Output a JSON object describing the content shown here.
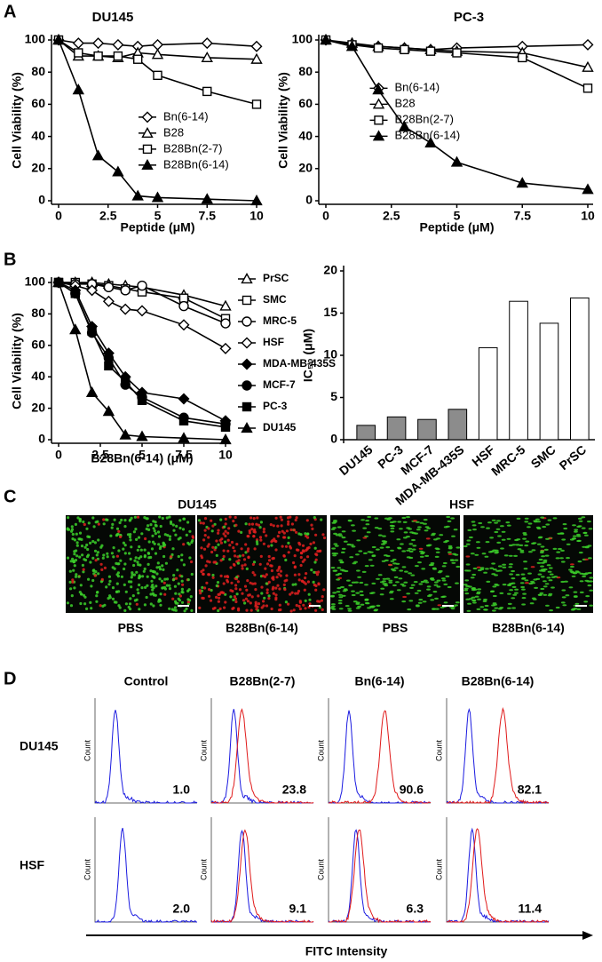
{
  "panel_labels": [
    "A",
    "B",
    "C",
    "D"
  ],
  "chart_data": [
    {
      "type": "line",
      "title": "DU145",
      "xlabel": "Peptide (μM)",
      "ylabel": "Cell Viability (%)",
      "x": [
        0,
        1,
        2,
        3,
        4,
        5,
        7.5,
        10
      ],
      "xlim": [
        0,
        10
      ],
      "xticks": [
        0,
        2.5,
        5,
        7.5,
        10
      ],
      "ylim": [
        0,
        100
      ],
      "yticks": [
        0,
        20,
        40,
        60,
        80,
        100
      ],
      "grid": false,
      "legend": "center right",
      "series": [
        {
          "name": "Bn(6-14)",
          "marker": "diamond-open",
          "color": "#000000",
          "values": [
            100,
            98,
            98,
            97,
            96,
            97,
            98,
            96
          ]
        },
        {
          "name": "B28",
          "marker": "triangle-open",
          "color": "#000000",
          "values": [
            100,
            90,
            90,
            89,
            92,
            91,
            89,
            88
          ]
        },
        {
          "name": "B28Bn(2-7)",
          "marker": "square-open",
          "color": "#000000",
          "values": [
            100,
            92,
            90,
            90,
            88,
            78,
            68,
            60
          ]
        },
        {
          "name": "B28Bn(6-14)",
          "marker": "triangle-filled",
          "color": "#000000",
          "values": [
            100,
            69,
            28,
            18,
            3,
            2,
            1,
            0
          ]
        }
      ]
    },
    {
      "type": "line",
      "title": "PC-3",
      "xlabel": "Peptide (μM)",
      "ylabel": "Cell Viability (%)",
      "x": [
        0,
        1,
        2,
        3,
        4,
        5,
        7.5,
        10
      ],
      "xlim": [
        0,
        10
      ],
      "xticks": [
        0,
        2.5,
        5,
        7.5,
        10
      ],
      "ylim": [
        0,
        100
      ],
      "yticks": [
        0,
        20,
        40,
        60,
        80,
        100
      ],
      "grid": false,
      "legend": "upper center",
      "series": [
        {
          "name": "Bn(6-14)",
          "marker": "diamond-open",
          "color": "#000000",
          "values": [
            100,
            97,
            96,
            95,
            94,
            95,
            96,
            97
          ]
        },
        {
          "name": "B28",
          "marker": "triangle-open",
          "color": "#000000",
          "values": [
            100,
            98,
            96,
            95,
            94,
            93,
            92,
            83
          ]
        },
        {
          "name": "B28Bn(2-7)",
          "marker": "square-open",
          "color": "#000000",
          "values": [
            100,
            97,
            95,
            94,
            93,
            92,
            89,
            70
          ]
        },
        {
          "name": "B28Bn(6-14)",
          "marker": "triangle-filled",
          "color": "#000000",
          "values": [
            100,
            96,
            69,
            46,
            36,
            24,
            11,
            7
          ]
        }
      ]
    },
    {
      "type": "line",
      "xlabel": "B28Bn(6-14) (μM)",
      "ylabel": "Cell Viability (%)",
      "x": [
        0,
        1,
        2,
        3,
        4,
        5,
        7.5,
        10
      ],
      "xlim": [
        0,
        10
      ],
      "xticks": [
        0,
        2.5,
        5,
        7.5,
        10
      ],
      "ylim": [
        0,
        100
      ],
      "yticks": [
        0,
        20,
        40,
        60,
        80,
        100
      ],
      "grid": false,
      "legend": "outside right",
      "series": [
        {
          "name": "PrSC",
          "marker": "triangle-open",
          "color": "#000000",
          "values": [
            100,
            100,
            100,
            99,
            98,
            97,
            92,
            85
          ]
        },
        {
          "name": "SMC",
          "marker": "square-open",
          "color": "#000000",
          "values": [
            100,
            100,
            99,
            98,
            96,
            94,
            90,
            77
          ]
        },
        {
          "name": "MRC-5",
          "marker": "circle-open",
          "color": "#000000",
          "values": [
            100,
            99,
            99,
            97,
            95,
            98,
            85,
            74
          ]
        },
        {
          "name": "HSF",
          "marker": "diamond-open",
          "color": "#000000",
          "values": [
            100,
            98,
            95,
            88,
            83,
            82,
            73,
            58
          ]
        },
        {
          "name": "MDA-MB-435S",
          "marker": "diamond-filled",
          "color": "#000000",
          "values": [
            100,
            95,
            72,
            55,
            40,
            30,
            26,
            12
          ]
        },
        {
          "name": "MCF-7",
          "marker": "circle-filled",
          "color": "#000000",
          "values": [
            100,
            93,
            68,
            52,
            35,
            27,
            14,
            10
          ]
        },
        {
          "name": "PC-3",
          "marker": "square-filled",
          "color": "#000000",
          "values": [
            100,
            93,
            69,
            47,
            37,
            25,
            12,
            8
          ]
        },
        {
          "name": "DU145",
          "marker": "triangle-filled",
          "color": "#000000",
          "values": [
            100,
            70,
            30,
            18,
            3,
            2,
            1,
            0
          ]
        }
      ]
    },
    {
      "type": "bar",
      "ylabel": "IC₅₀ (μM)",
      "categories": [
        "DU145",
        "PC-3",
        "MCF-7",
        "MDA-MB-435S",
        "HSF",
        "MRC-5",
        "SMC",
        "PrSC"
      ],
      "values": [
        1.7,
        2.7,
        2.4,
        3.6,
        10.9,
        16.4,
        13.8,
        16.8
      ],
      "colors": [
        "#8c8c8c",
        "#8c8c8c",
        "#8c8c8c",
        "#8c8c8c",
        "#ffffff",
        "#ffffff",
        "#ffffff",
        "#ffffff"
      ],
      "ylim": [
        0,
        20
      ],
      "yticks": [
        0,
        5,
        10,
        15,
        20
      ],
      "grid": false
    }
  ],
  "imaging_panel": {
    "groups": [
      "DU145",
      "HSF"
    ],
    "images": [
      "PBS",
      "B28Bn(6-14)",
      "PBS",
      "B28Bn(6-14)"
    ]
  },
  "flow_panel": {
    "columns": [
      "Control",
      "B28Bn(2-7)",
      "Bn(6-14)",
      "B28Bn(6-14)"
    ],
    "rows": [
      {
        "name": "DU145",
        "values": [
          "1.0",
          "23.8",
          "90.6",
          "82.1"
        ]
      },
      {
        "name": "HSF",
        "values": [
          "2.0",
          "9.1",
          "6.3",
          "11.4"
        ]
      }
    ],
    "y_axis_label": "Count",
    "x_axis_label": "FITC Intensity"
  }
}
